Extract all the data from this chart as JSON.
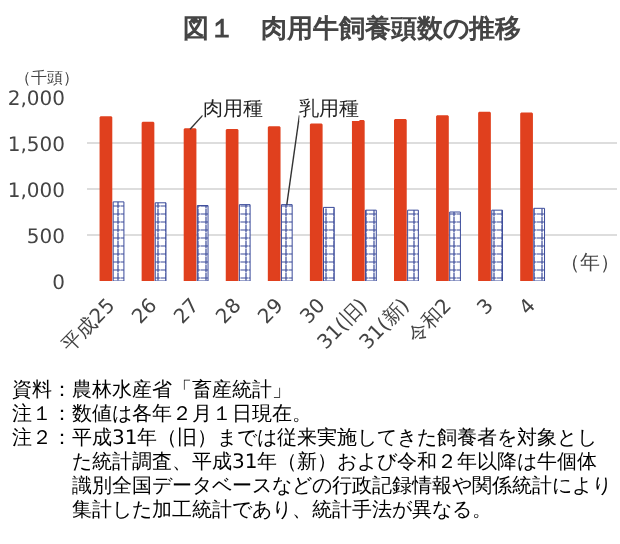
{
  "chart_data": {
    "type": "bar",
    "title": "図１　肉用牛飼養頭数の推移",
    "ylabel": "（千頭）",
    "xlabel": "（年）",
    "categories": [
      "平成25",
      "26",
      "27",
      "28",
      "29",
      "30",
      "31(旧)",
      "31(新)",
      "令和2",
      "3",
      "4"
    ],
    "series": [
      {
        "name": "肉用種",
        "color": "#e0401e",
        "values": [
          1780,
          1720,
          1650,
          1640,
          1670,
          1700,
          1740,
          1750,
          1790,
          1830,
          1820
        ]
      },
      {
        "name": "乳用種",
        "color": "#3a4a9a",
        "values": [
          860,
          850,
          820,
          830,
          830,
          800,
          770,
          770,
          750,
          770,
          790
        ]
      }
    ],
    "ylim": [
      0,
      2000
    ],
    "yticks": [
      0,
      500,
      {
        "value": 1000,
        "label": "1,000"
      },
      {
        "value": 1500,
        "label": "1,500"
      },
      {
        "value": 2000,
        "label": "2,000"
      }
    ],
    "grid": "y",
    "annotations": [
      "資料：農林水産省「畜産統計」",
      "注１：数値は各年２月１日現在。",
      "注２：平成31年（旧）までは従来実施してきた飼養者を対象とした統計調査、平成31年（新）および令和２年以降は牛個体識別全国データベースなどの行政記録情報や関係統計により集計した加工統計であり、統計手法が異なる。"
    ]
  }
}
